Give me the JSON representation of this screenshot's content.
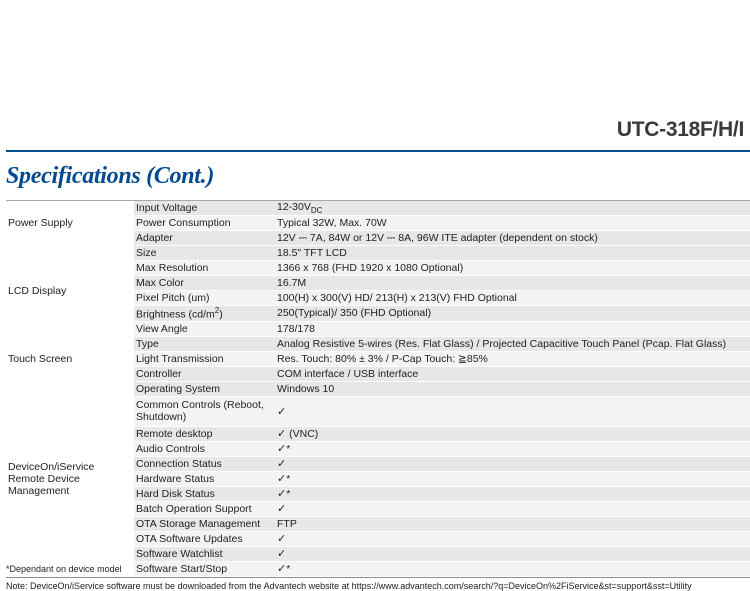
{
  "colors": {
    "accent": "#004a8f",
    "band_even": "#e7e7e7",
    "band_odd": "#f3f3f3",
    "section_border": "#a8a8a8",
    "text": "#222222",
    "background": "#ffffff"
  },
  "header": {
    "product_title": "UTC-318F/H/I",
    "section_title": "Specifications (Cont.)"
  },
  "table": {
    "sections": [
      {
        "category": "Power Supply",
        "rows": [
          {
            "label": "Input Voltage",
            "value_pre": "12-30V",
            "value_sub": "DC",
            "value_post": ""
          },
          {
            "label": "Power Consumption",
            "value": "Typical 32W, Max. 70W"
          },
          {
            "label": "Adapter",
            "value": "12V ⎓ 7A, 84W or 12V ⎓ 8A, 96W ITE adapter (dependent on stock)"
          }
        ]
      },
      {
        "category": "LCD Display",
        "rows": [
          {
            "label": "Size",
            "value": "18.5\" TFT LCD"
          },
          {
            "label": "Max Resolution",
            "value": "1366 x 768 (FHD 1920 x 1080 Optional)"
          },
          {
            "label": "Max Color",
            "value": "16.7M"
          },
          {
            "label": "Pixel Pitch (um)",
            "value": "100(H) x 300(V) HD/ 213(H) x 213(V) FHD Optional"
          },
          {
            "label_pre": "Brightness (cd/m",
            "label_sup": "2",
            "label_post": ")",
            "value": "250(Typical)/ 350 (FHD Optional)"
          },
          {
            "label": "View Angle",
            "value": "178/178"
          }
        ]
      },
      {
        "category": "Touch Screen",
        "rows": [
          {
            "label": "Type",
            "value": "Analog Resistive 5-wires (Res. Flat Glass) / Projected Capacitive Touch Panel (Pcap. Flat Glass)"
          },
          {
            "label": "Light Transmission",
            "value": "Res. Touch: 80% ± 3% / P-Cap Touch: ≧85%"
          },
          {
            "label": "Controller",
            "value": "COM interface / USB interface"
          }
        ]
      },
      {
        "category": "DeviceOn/iService\nRemote Device Management",
        "dependant_label": "*Dependant on device model",
        "rows": [
          {
            "label": "Operating System",
            "value": "Windows 10"
          },
          {
            "label": "Common Controls (Reboot, Shutdown)",
            "value": "✓",
            "tall": true
          },
          {
            "label": "Remote desktop",
            "value": "✓ (VNC)"
          },
          {
            "label": "Audio Controls",
            "value": "✓*"
          },
          {
            "label": "Connection Status",
            "value": "✓"
          },
          {
            "label": "Hardware Status",
            "value": "✓*"
          },
          {
            "label": "Hard Disk Status",
            "value": "✓*"
          },
          {
            "label": "Batch Operation Support",
            "value": "✓"
          },
          {
            "label": "OTA Storage Management",
            "value": "FTP"
          },
          {
            "label": "OTA Software Updates",
            "value": "✓"
          },
          {
            "label": "Software Watchlist",
            "value": "✓"
          },
          {
            "label": "Software Start/Stop",
            "value": "✓*"
          }
        ]
      }
    ]
  },
  "footnote": "Note: DeviceOn/iService software must be downloaded from the Advantech website at https://www.advantech.com/search/?q=DeviceOn%2FiService&st=support&sst=Utility",
  "checkmark": "✓"
}
